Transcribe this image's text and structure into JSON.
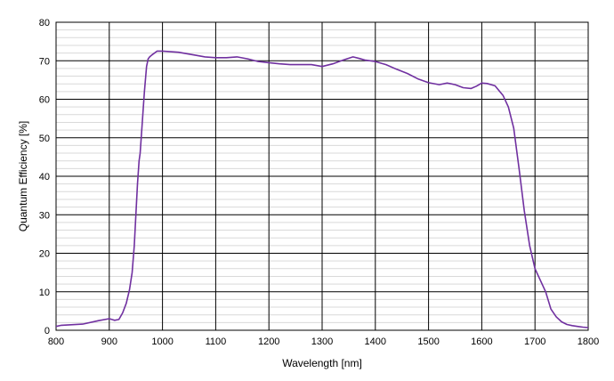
{
  "chart_data": {
    "type": "line",
    "title": "",
    "xlabel": "Wavelength [nm]",
    "ylabel": "Quantum Efficiency [%]",
    "xlim": [
      800,
      1800
    ],
    "ylim": [
      0,
      80
    ],
    "x_ticks": [
      800,
      900,
      1000,
      1100,
      1200,
      1300,
      1400,
      1500,
      1600,
      1700,
      1800
    ],
    "y_ticks": [
      0,
      10,
      20,
      30,
      40,
      50,
      60,
      70,
      80
    ],
    "grid": {
      "major": true,
      "minor_y": true,
      "minor_y_step": 2
    },
    "legend": "none",
    "series": [
      {
        "color": "#7030a0",
        "x": [
          800,
          810,
          850,
          880,
          900,
          910,
          918,
          925,
          932,
          938,
          943,
          947,
          950,
          953,
          956,
          958,
          962,
          966,
          970,
          973,
          976,
          980,
          990,
          1000,
          1030,
          1060,
          1080,
          1100,
          1120,
          1140,
          1160,
          1180,
          1200,
          1220,
          1240,
          1260,
          1280,
          1300,
          1320,
          1340,
          1358,
          1370,
          1380,
          1400,
          1420,
          1440,
          1460,
          1480,
          1500,
          1520,
          1535,
          1550,
          1565,
          1580,
          1590,
          1600,
          1610,
          1625,
          1640,
          1650,
          1660,
          1670,
          1680,
          1690,
          1700,
          1710,
          1720,
          1730,
          1740,
          1750,
          1760,
          1770,
          1780,
          1790,
          1800
        ],
        "y": [
          1.0,
          1.3,
          1.6,
          2.5,
          3.0,
          2.6,
          2.8,
          4.5,
          7.0,
          10.5,
          15.0,
          22.0,
          30.0,
          38.0,
          44.0,
          46.0,
          54.0,
          62.0,
          68.5,
          70.5,
          71.0,
          71.5,
          72.5,
          72.5,
          72.2,
          71.5,
          71.0,
          70.8,
          70.8,
          71.0,
          70.5,
          69.8,
          69.5,
          69.2,
          69.0,
          69.0,
          69.0,
          68.5,
          69.2,
          70.2,
          71.0,
          70.6,
          70.2,
          69.8,
          69.0,
          67.8,
          66.7,
          65.3,
          64.3,
          63.8,
          64.2,
          63.8,
          63.0,
          62.8,
          63.4,
          64.2,
          64.1,
          63.5,
          61.0,
          58.0,
          52.5,
          42.0,
          31.0,
          22.0,
          16.0,
          13.0,
          10.0,
          5.5,
          3.5,
          2.2,
          1.5,
          1.2,
          1.0,
          0.8,
          0.7
        ]
      }
    ]
  }
}
